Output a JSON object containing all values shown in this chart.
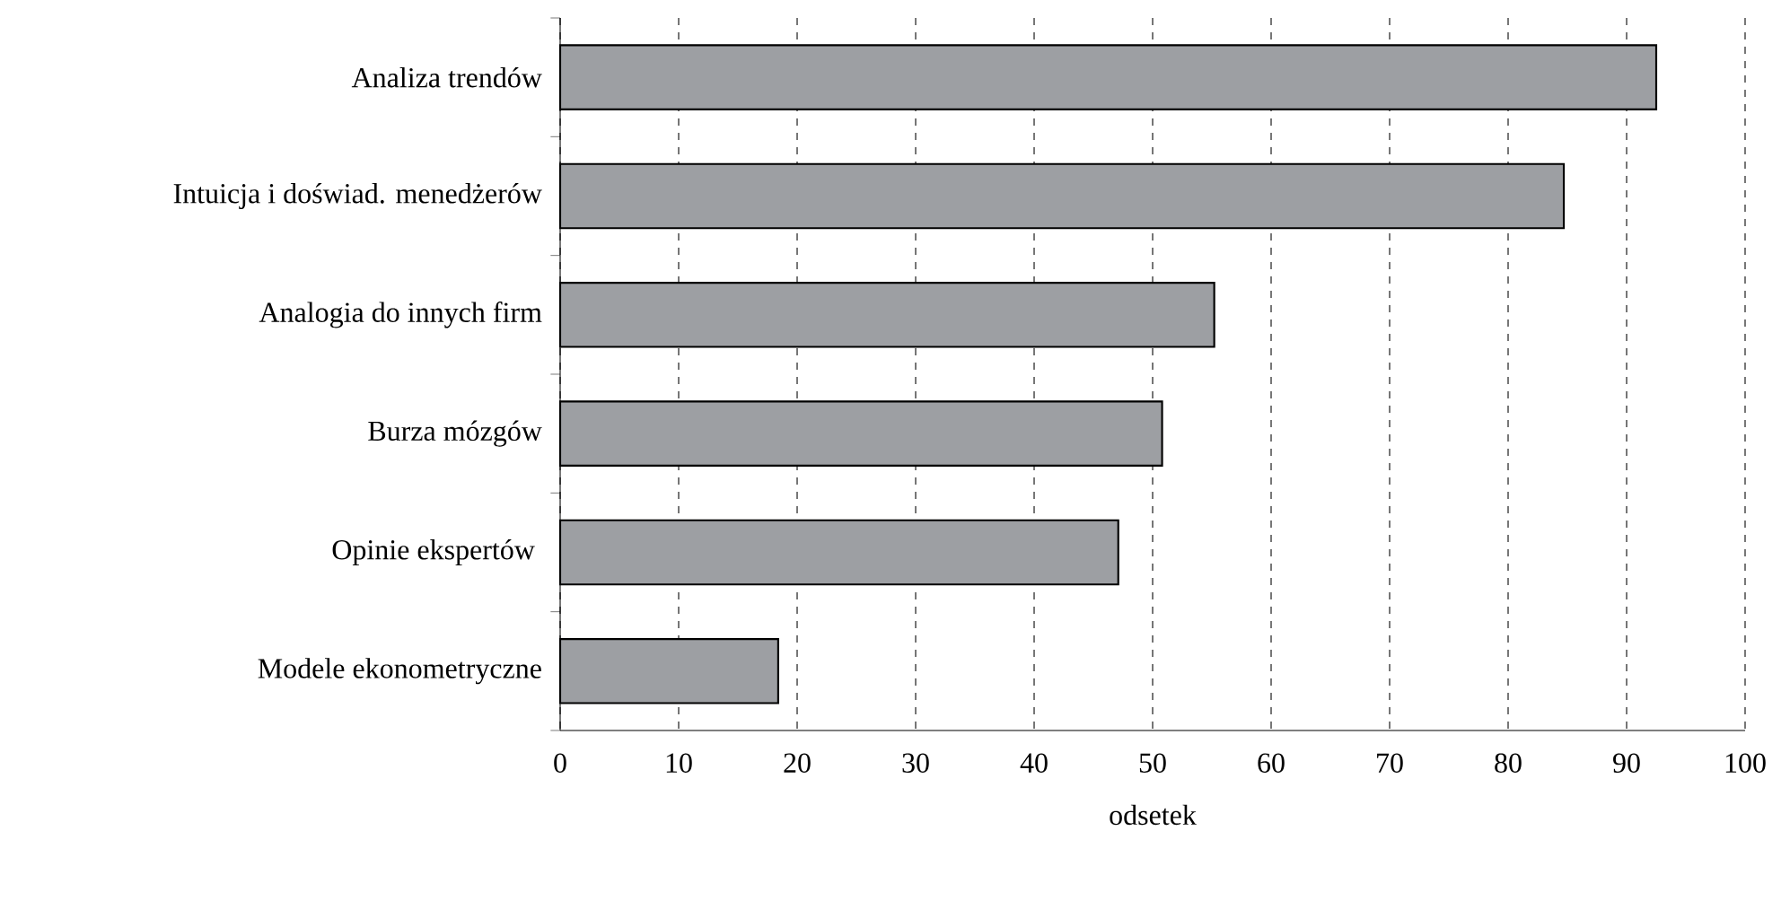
{
  "chart_data": {
    "type": "bar",
    "orientation": "horizontal",
    "xlabel": "odsetek",
    "categories": [
      "Analiza trendów",
      "Intuicja i doświad. menedżerów",
      "Analogia do innych firm",
      "Burza mózgów",
      "Opinie ekspertów ",
      "Modele ekonometryczne"
    ],
    "values": [
      92.5,
      84.7,
      55.2,
      50.8,
      47.1,
      18.4
    ],
    "color": "#9d9fa3",
    "xlim": [
      0,
      100
    ],
    "xticks": [
      0,
      10,
      20,
      30,
      40,
      50,
      60,
      70,
      80,
      90,
      100
    ],
    "grid": "x"
  }
}
